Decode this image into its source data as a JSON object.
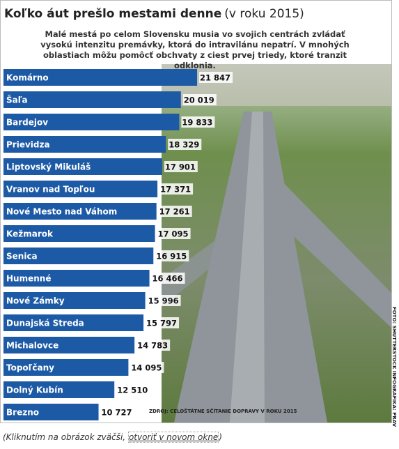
{
  "chart_data": {
    "type": "bar",
    "orientation": "horizontal",
    "title": "Koľko áut prešlo mestami denne",
    "title_note": "(v roku 2015)",
    "subtitle": "Malé mestá po celom Slovensku musia vo svojich centrách zvládať vysokú intenzitu premávky, ktorá do intravilánu nepatrí. V mnohých oblastiach môžu pomôcť obchvaty z ciest prvej triedy, ktoré tranzit odklonia.",
    "categories": [
      "Komárno",
      "Šaľa",
      "Bardejov",
      "Prievidza",
      "Liptovský Mikuláš",
      "Vranov nad Topľou",
      "Nové Mesto nad Váhom",
      "Kežmarok",
      "Senica",
      "Humenné",
      "Nové Zámky",
      "Dunajská Streda",
      "Michalovce",
      "Topoľčany",
      "Dolný Kubín",
      "Brezno"
    ],
    "values": [
      21847,
      20019,
      19833,
      18329,
      17901,
      17371,
      17261,
      17095,
      16915,
      16466,
      15996,
      15797,
      14783,
      14095,
      12510,
      10727
    ],
    "value_labels": [
      "21 847",
      "20 019",
      "19 833",
      "18 329",
      "17 901",
      "17 371",
      "17 261",
      "17 095",
      "16 915",
      "16 466",
      "15 996",
      "15 797",
      "14 783",
      "14 095",
      "12 510",
      "10 727"
    ],
    "color": "#1d5aa6",
    "xlim": [
      0,
      22000
    ],
    "source": "ZDROJ: CELOŠTÁTNE SČÍTANIE DOPRAVY V ROKU 2015",
    "credit": "FOTO: SHUTTERSTOCK   INFOGRAFIKA: PRAVDA/LCH"
  },
  "caption": {
    "before": "(Kliknutím na obrázok zväčši,",
    "link": "otvoriť v novom okne",
    "after": ")"
  }
}
